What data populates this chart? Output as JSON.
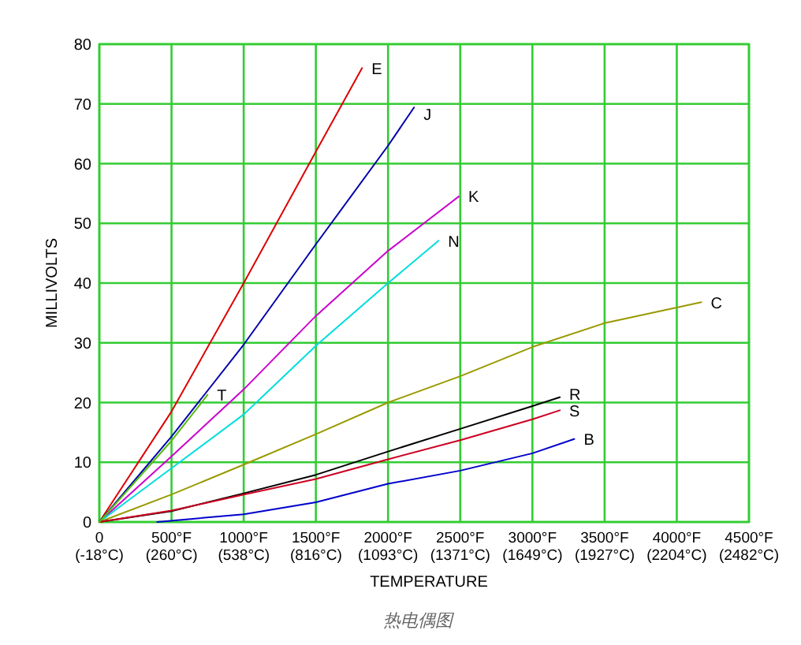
{
  "chart_data": {
    "type": "line",
    "xlabel": "TEMPERATURE",
    "ylabel": "MILLIVOLTS",
    "annotations": [
      "热电偶图"
    ],
    "xlim": [
      0,
      4500
    ],
    "ylim": [
      0,
      80
    ],
    "xticks": [
      0,
      {
        "value": 500,
        "label": "500°F"
      },
      {
        "value": 1000,
        "label": "1000°F"
      },
      {
        "value": 1500,
        "label": "1500°F"
      },
      {
        "value": 2000,
        "label": "2000°F"
      },
      {
        "value": 2500,
        "label": "2500°F"
      },
      {
        "value": 3000,
        "label": "3000°F"
      },
      {
        "value": 3500,
        "label": "3500°F"
      },
      {
        "value": 4000,
        "label": "4000°F"
      },
      {
        "value": 4500,
        "label": "4500°F"
      }
    ],
    "x2lim": [
      -18,
      2482
    ],
    "x2ticks": [
      {
        "value": -18,
        "label": "(-18°C)"
      },
      {
        "value": 260,
        "label": "(260°C)"
      },
      {
        "value": 538,
        "label": "(538°C)"
      },
      {
        "value": 816,
        "label": "(816°C)"
      },
      {
        "value": 1093,
        "label": "(1093°C)"
      },
      {
        "value": 1371,
        "label": "(1371°C)"
      },
      {
        "value": 1649,
        "label": "(1649°C)"
      },
      {
        "value": 1927,
        "label": "(1927°C)"
      },
      {
        "value": 2204,
        "label": "(2204°C)"
      },
      {
        "value": 2482,
        "label": "(2482°C)"
      }
    ],
    "yticks": [
      0,
      10,
      20,
      30,
      40,
      50,
      60,
      70,
      80
    ],
    "grid": true,
    "series": [
      {
        "name": "E",
        "color": "#dd0000",
        "x": [
          0,
          500,
          1000,
          1500,
          1820
        ],
        "values": [
          0,
          18.5,
          40,
          62,
          76
        ]
      },
      {
        "name": "J",
        "color": "#0000aa",
        "x": [
          0,
          500,
          1000,
          1500,
          2000,
          2180
        ],
        "values": [
          0,
          14.3,
          29.7,
          46.5,
          63,
          69.4
        ]
      },
      {
        "name": "K",
        "color": "#cc00cc",
        "x": [
          0,
          500,
          1000,
          1500,
          2000,
          2490
        ],
        "values": [
          0,
          11,
          22.2,
          34.5,
          45.4,
          54.5
        ]
      },
      {
        "name": "N",
        "color": "#00dddd",
        "x": [
          0,
          500,
          1000,
          1500,
          2000,
          2350
        ],
        "values": [
          0,
          9,
          18,
          29.5,
          40,
          47.1
        ]
      },
      {
        "name": "C",
        "color": "#999900",
        "x": [
          0,
          500,
          1000,
          1500,
          2000,
          2500,
          3000,
          3500,
          4000,
          4170
        ],
        "values": [
          0,
          4.6,
          9.6,
          14.7,
          20,
          24.4,
          29.3,
          33.3,
          35.9,
          36.8
        ]
      },
      {
        "name": "R",
        "color": "#000000",
        "x": [
          0,
          500,
          1000,
          1500,
          2000,
          2500,
          3000,
          3190
        ],
        "values": [
          0,
          1.8,
          4.8,
          7.9,
          11.8,
          15.6,
          19.4,
          20.9
        ]
      },
      {
        "name": "S",
        "color": "#cc0022",
        "x": [
          0,
          500,
          1000,
          1500,
          2000,
          2500,
          3000,
          3190
        ],
        "values": [
          0,
          1.9,
          4.6,
          7.2,
          10.5,
          13.7,
          17.2,
          18.7
        ]
      },
      {
        "name": "B",
        "color": "#0000cc",
        "x": [
          400,
          1000,
          1500,
          2000,
          2500,
          3000,
          3290
        ],
        "values": [
          0,
          1.3,
          3.3,
          6.4,
          8.6,
          11.5,
          13.9
        ]
      },
      {
        "name": "T",
        "color": "#55bb11",
        "x": [
          0,
          500,
          750
        ],
        "values": [
          0,
          13.6,
          21.3
        ]
      }
    ]
  }
}
